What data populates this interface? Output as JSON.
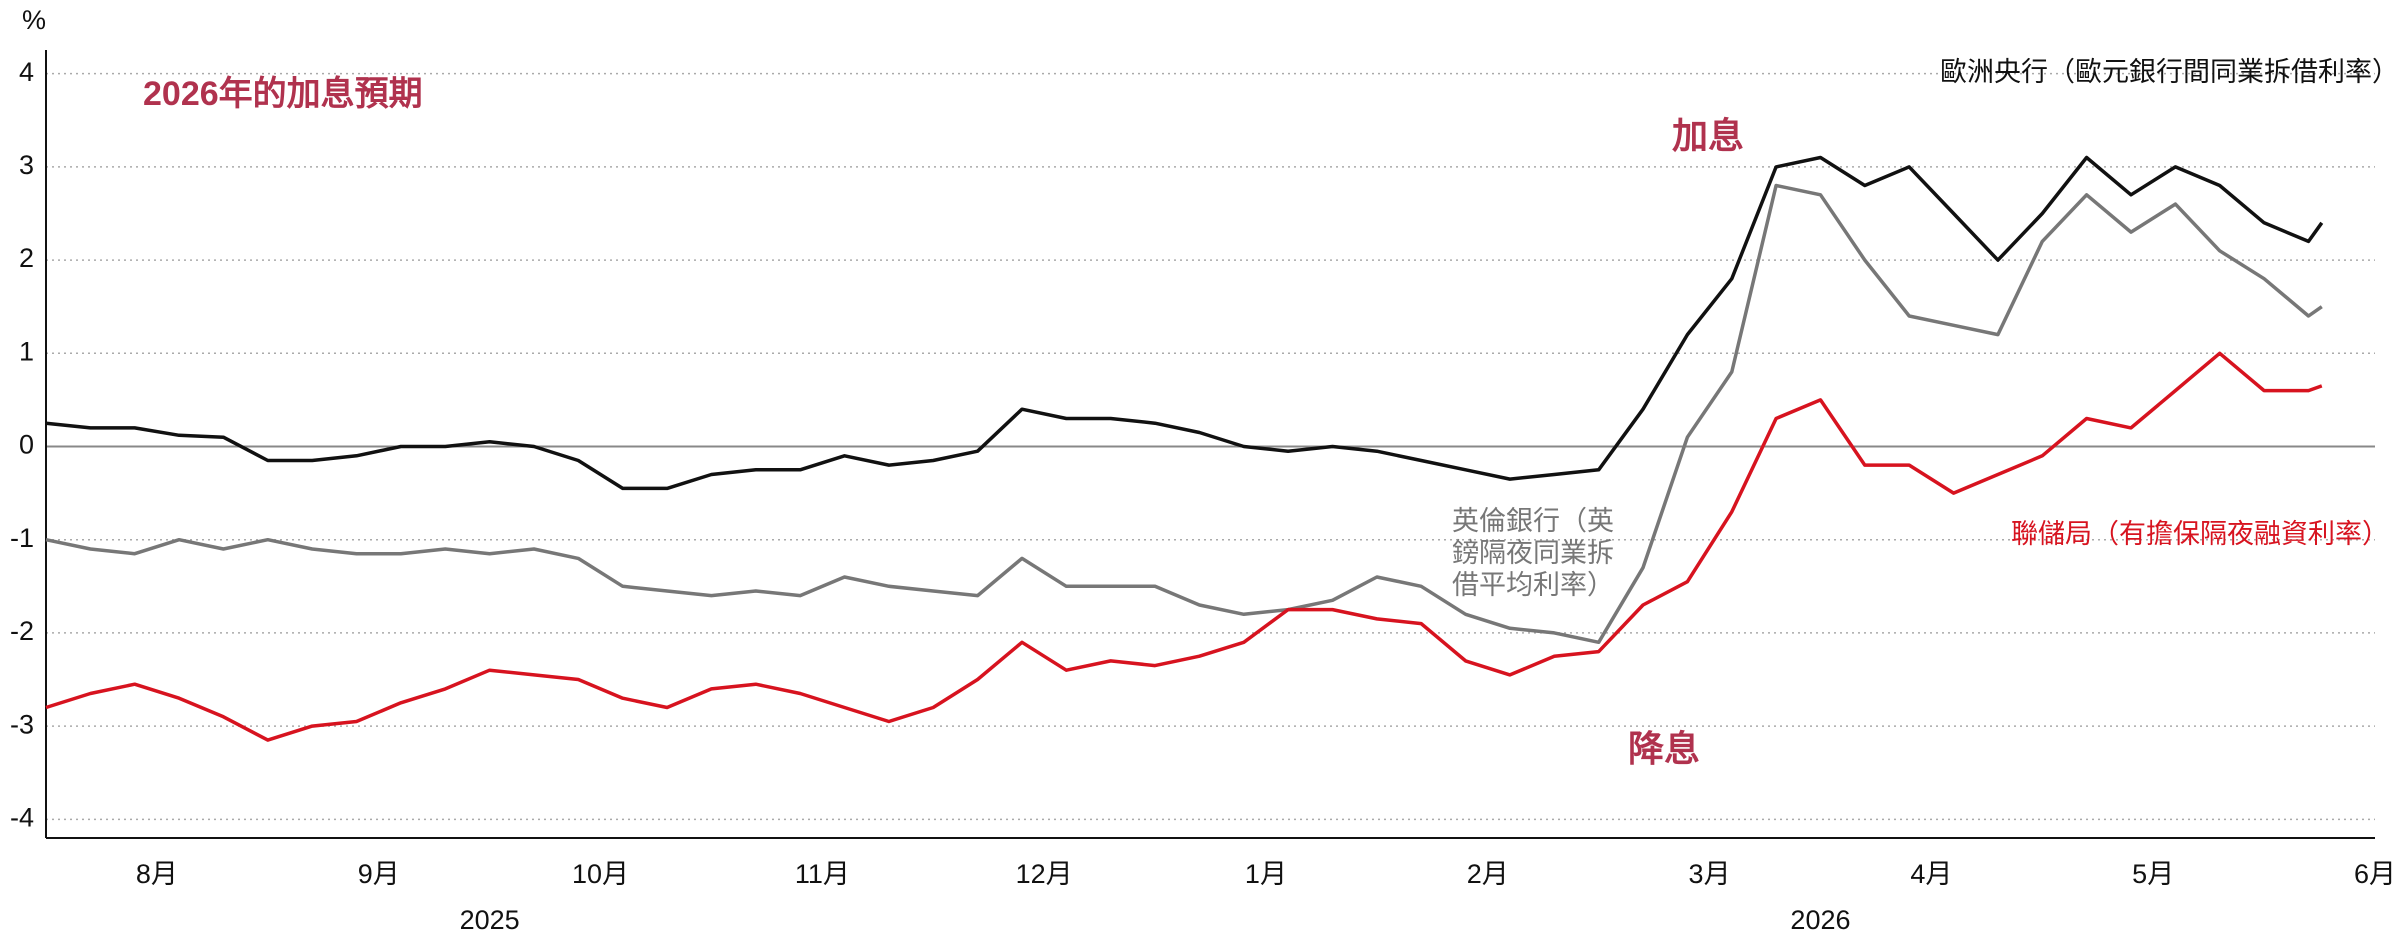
{
  "chart_data": {
    "type": "line",
    "title": "2026年的加息預期",
    "y_unit": "%",
    "annotations": [
      "加息",
      "降息"
    ],
    "year_labels": [
      "2025",
      "2026"
    ],
    "x": [
      7.5,
      7.7,
      7.9,
      8.1,
      8.3,
      8.5,
      8.7,
      8.9,
      9.1,
      9.3,
      9.5,
      9.7,
      9.9,
      10.1,
      10.3,
      10.5,
      10.7,
      10.9,
      11.1,
      11.3,
      11.5,
      11.7,
      11.9,
      12.1,
      12.3,
      12.5,
      12.7,
      12.9,
      13.1,
      13.3,
      13.5,
      13.7,
      13.9,
      14.1,
      14.3,
      14.5,
      14.7,
      14.9,
      15.1,
      15.3,
      15.5,
      15.7,
      15.9,
      16.1,
      16.3,
      16.5,
      16.7,
      16.9,
      17.1,
      17.3,
      17.5,
      17.7,
      17.76
    ],
    "xlim": [
      7.5,
      18
    ],
    "xticks": [
      {
        "value": 8,
        "label": "8月"
      },
      {
        "value": 9,
        "label": "9月"
      },
      {
        "value": 10,
        "label": "10月"
      },
      {
        "value": 11,
        "label": "11月"
      },
      {
        "value": 12,
        "label": "12月"
      },
      {
        "value": 13,
        "label": "1月"
      },
      {
        "value": 14,
        "label": "2月"
      },
      {
        "value": 15,
        "label": "3月"
      },
      {
        "value": 16,
        "label": "4月"
      },
      {
        "value": 17,
        "label": "5月"
      },
      {
        "value": 18,
        "label": "6月"
      }
    ],
    "ylim": [
      -4.2,
      4.2
    ],
    "yticks": [
      -4,
      -3,
      -2,
      -1,
      0,
      1,
      2,
      3,
      4
    ],
    "grid": true,
    "series": [
      {
        "name": "歐洲央行（歐元銀行間同業拆借利率）",
        "color": "#111111",
        "values": [
          0.25,
          0.2,
          0.2,
          0.12,
          0.1,
          -0.15,
          -0.15,
          -0.1,
          0.0,
          0.0,
          0.05,
          0.0,
          -0.15,
          -0.45,
          -0.45,
          -0.3,
          -0.25,
          -0.25,
          -0.1,
          -0.2,
          -0.15,
          -0.05,
          0.4,
          0.3,
          0.3,
          0.25,
          0.15,
          0.0,
          -0.05,
          0.0,
          -0.05,
          -0.15,
          -0.25,
          -0.35,
          -0.3,
          -0.25,
          0.4,
          1.2,
          1.8,
          3.0,
          3.1,
          2.8,
          3.0,
          2.5,
          2.0,
          2.5,
          3.1,
          2.7,
          3.0,
          2.8,
          2.4,
          2.2,
          2.4
        ]
      },
      {
        "name": "英倫銀行（英鎊隔夜同業拆借平均利率）",
        "color": "#777777",
        "values": [
          -1.0,
          -1.1,
          -1.15,
          -1.0,
          -1.1,
          -1.0,
          -1.1,
          -1.15,
          -1.15,
          -1.1,
          -1.15,
          -1.1,
          -1.2,
          -1.5,
          -1.55,
          -1.6,
          -1.55,
          -1.6,
          -1.4,
          -1.5,
          -1.55,
          -1.6,
          -1.2,
          -1.5,
          -1.5,
          -1.5,
          -1.7,
          -1.8,
          -1.75,
          -1.65,
          -1.4,
          -1.5,
          -1.8,
          -1.95,
          -2.0,
          -2.1,
          -1.3,
          0.1,
          0.8,
          2.8,
          2.7,
          2.0,
          1.4,
          1.3,
          1.2,
          2.2,
          2.7,
          2.3,
          2.6,
          2.1,
          1.8,
          1.4,
          1.5
        ]
      },
      {
        "name": "聯儲局（有擔保隔夜融資利率）",
        "color": "#d7131f",
        "values": [
          -2.8,
          -2.65,
          -2.55,
          -2.7,
          -2.9,
          -3.15,
          -3.0,
          -2.95,
          -2.75,
          -2.6,
          -2.4,
          -2.45,
          -2.5,
          -2.7,
          -2.8,
          -2.6,
          -2.55,
          -2.65,
          -2.8,
          -2.95,
          -2.8,
          -2.5,
          -2.1,
          -2.4,
          -2.3,
          -2.35,
          -2.25,
          -2.1,
          -1.75,
          -1.75,
          -1.85,
          -1.9,
          -2.3,
          -2.45,
          -2.25,
          -2.2,
          -1.7,
          -1.45,
          -0.7,
          0.3,
          0.5,
          -0.2,
          -0.2,
          -0.5,
          -0.3,
          -0.1,
          0.3,
          0.2,
          0.6,
          1.0,
          0.6,
          0.6,
          0.65
        ]
      }
    ]
  }
}
